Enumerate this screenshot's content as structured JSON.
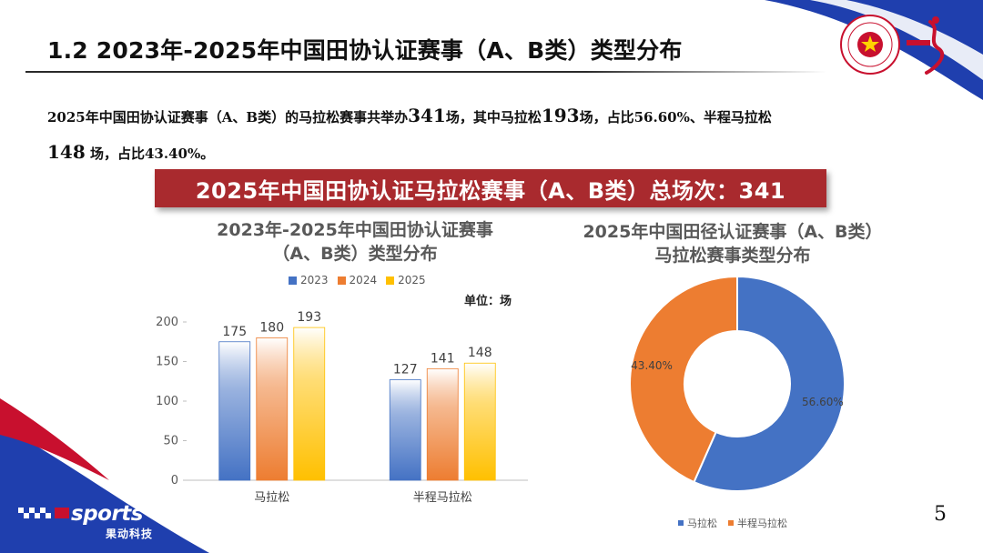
{
  "title": "1.2 2023年-2025年中国田协认证赛事（A、B类）类型分布",
  "intro": {
    "p1": "2025年中国田协认证赛事（A、B类）的马拉松赛事共举办",
    "n1": "341",
    "p2": "场，其中马拉松",
    "n2": "193",
    "p3": "场，占比56.60%、半程马拉松",
    "n3": "148",
    "p4": "场，占比43.40%。"
  },
  "banner": "2025年中国田协认证马拉松赛事（A、B类）总场次：341",
  "brand": {
    "name": "sports",
    "sub": "果动科技"
  },
  "page_number": "5",
  "colors": {
    "c2023": "#4472c4",
    "c2024": "#ed7d31",
    "c2025": "#ffc000",
    "banner": "#a92a2e",
    "accent_blue": "#1f3fae"
  },
  "icons": [
    "china-athletics-association-logo",
    "china-marathon-logo",
    "sports-brand-logo"
  ],
  "chart_data": [
    {
      "type": "bar",
      "title_line1": "2023年-2025年中国田协认证赛事",
      "title_line2": "（A、B类）类型分布",
      "unit_label": "单位：场",
      "categories": [
        "马拉松",
        "半程马拉松"
      ],
      "series": [
        {
          "name": "2023",
          "values": [
            175,
            127
          ]
        },
        {
          "name": "2024",
          "values": [
            180,
            141
          ]
        },
        {
          "name": "2025",
          "values": [
            193,
            148
          ]
        }
      ],
      "ylim": [
        0,
        200
      ],
      "yticks": [
        0,
        50,
        100,
        150,
        200
      ],
      "legend": "top-center",
      "grid": false
    },
    {
      "type": "pie",
      "donut": true,
      "title_line1": "2025年中国田径认证赛事（A、B类）",
      "title_line2": "马拉松赛事类型分布",
      "labels": [
        "马拉松",
        "半程马拉松"
      ],
      "values": [
        56.6,
        43.4
      ],
      "value_labels": [
        "56.60%",
        "43.40%"
      ],
      "legend": "bottom"
    }
  ]
}
